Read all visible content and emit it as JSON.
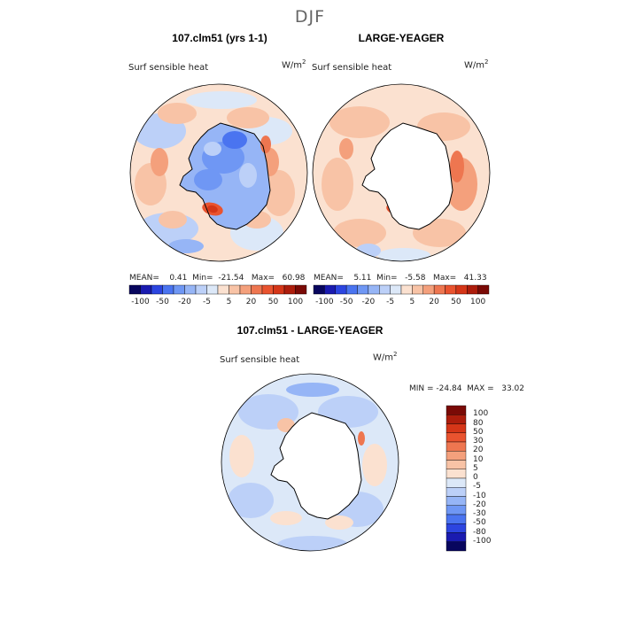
{
  "season": "DJF",
  "colors": {
    "land": "#ffffff",
    "coast": "#000000",
    "scale": [
      "#08065e",
      "#1a1bb0",
      "#2c45e0",
      "#4a74f0",
      "#6f97f4",
      "#96b5f6",
      "#bcd0f8",
      "#dce8f8",
      "#fbe1d0",
      "#f8c3a6",
      "#f4a07c",
      "#ee7650",
      "#e9532f",
      "#d53618",
      "#ad1d0c",
      "#7a0a06"
    ],
    "diverging_zero_neg": "#dce8f8",
    "diverging_zero_pos": "#fbe1d0"
  },
  "panels": [
    {
      "title": "107.clm51 (yrs 1-1)",
      "variable": "Surf sensible heat",
      "units_base": "W/m",
      "units_exp": "2",
      "stats": "MEAN=    0.41  Min=  -21.54   Max=   60.98"
    },
    {
      "title": "LARGE-YEAGER",
      "variable": "Surf sensible heat",
      "units_base": "W/m",
      "units_exp": "2",
      "stats": "MEAN=    5.11  Min=   -5.58   Max=   41.33"
    },
    {
      "title": "107.clm51 - LARGE-YEAGER",
      "variable": "Surf sensible heat",
      "units_base": "W/m",
      "units_exp": "2",
      "stats": "MIN = -24.84  MAX =   33.02"
    }
  ],
  "colorbar_horizontal": {
    "ticks": [
      "-100",
      "-50",
      "-20",
      "-5",
      "5",
      "20",
      "50",
      "100"
    ]
  },
  "colorbar_vertical": {
    "ticks": [
      "100",
      "80",
      "50",
      "30",
      "20",
      "10",
      "5",
      "0",
      "-5",
      "-10",
      "-20",
      "-30",
      "-50",
      "-80",
      "-100"
    ]
  },
  "chart_data": [
    {
      "type": "heatmap",
      "projection": "south-polar-stereographic",
      "title": "107.clm51 (yrs 1-1)",
      "variable": "Surf sensible heat",
      "units": "W/m2",
      "season": "DJF",
      "mean": 0.41,
      "min": -21.54,
      "max": 60.98,
      "contour_levels": [
        -100,
        -50,
        -20,
        -5,
        5,
        20,
        50,
        100
      ]
    },
    {
      "type": "heatmap",
      "projection": "south-polar-stereographic",
      "title": "LARGE-YEAGER",
      "variable": "Surf sensible heat",
      "units": "W/m2",
      "season": "DJF",
      "mean": 5.11,
      "min": -5.58,
      "max": 41.33,
      "contour_levels": [
        -100,
        -50,
        -20,
        -5,
        5,
        20,
        50,
        100
      ]
    },
    {
      "type": "heatmap",
      "projection": "south-polar-stereographic",
      "title": "107.clm51 - LARGE-YEAGER",
      "variable": "Surf sensible heat",
      "units": "W/m2",
      "season": "DJF",
      "min": -24.84,
      "max": 33.02,
      "contour_levels": [
        -100,
        -80,
        -50,
        -30,
        -20,
        -10,
        -5,
        0,
        5,
        10,
        20,
        30,
        50,
        80,
        100
      ]
    }
  ]
}
